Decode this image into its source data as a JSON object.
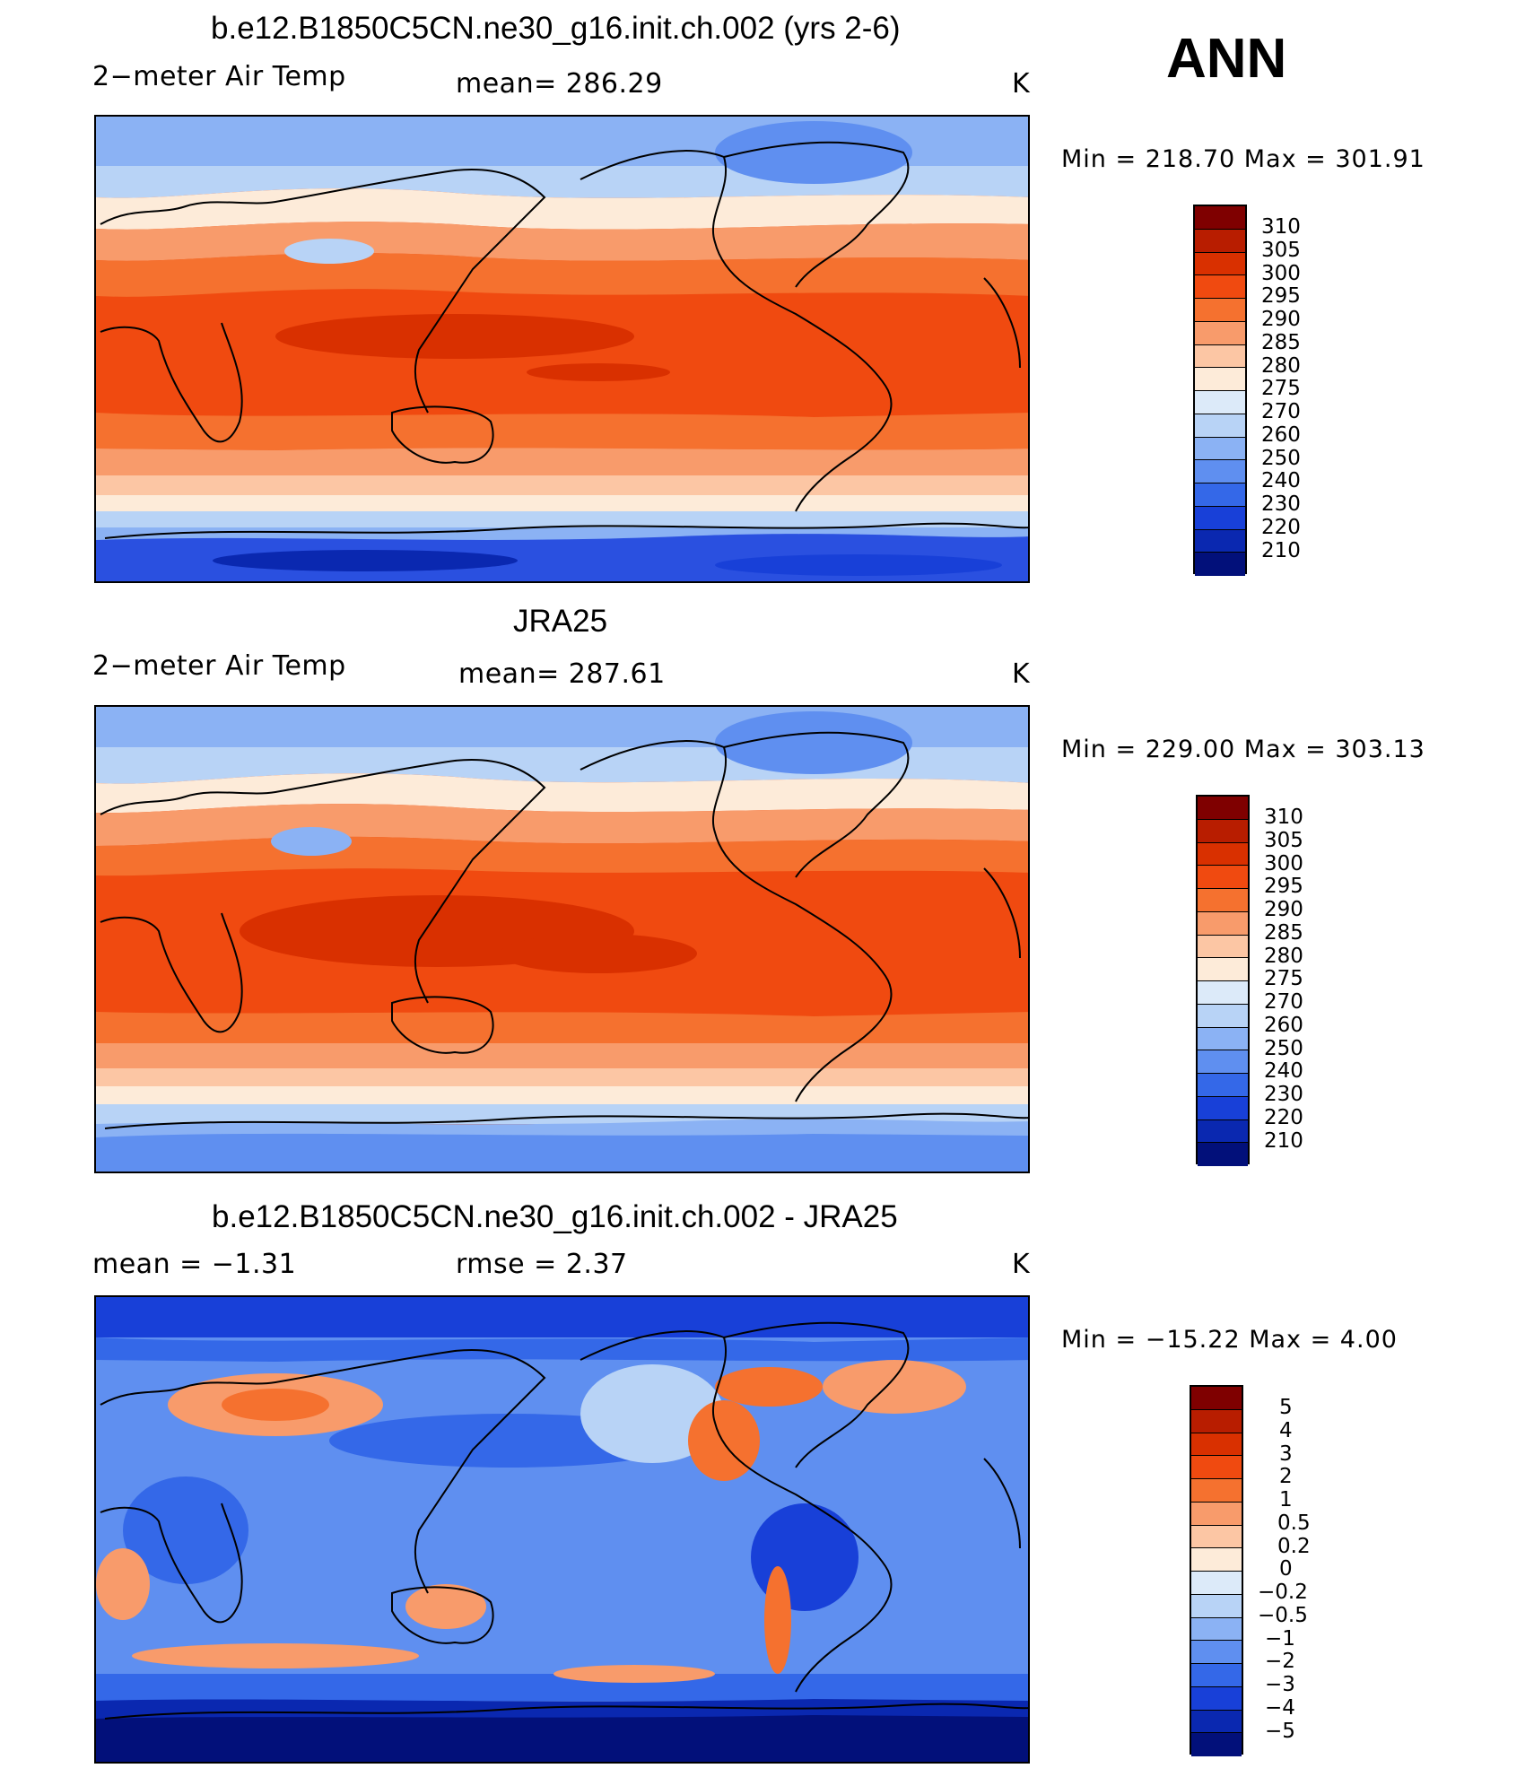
{
  "season": "ANN",
  "panels": [
    {
      "title": "b.e12.B1850C5CN.ne30_g16.init.ch.002 (yrs 2-6)",
      "left_label": "2−meter Air Temp",
      "center_label": "mean=  286.29",
      "units": "K",
      "minmax": "Min  =  218.70  Max  =  301.91",
      "colorbar_labels": [
        "310",
        "305",
        "300",
        "295",
        "290",
        "285",
        "280",
        "275",
        "270",
        "260",
        "250",
        "240",
        "230",
        "220",
        "210"
      ]
    },
    {
      "title": "JRA25",
      "left_label": "2−meter Air Temp",
      "center_label": "mean=  287.61",
      "units": "K",
      "minmax": "Min  =  229.00  Max  =  303.13",
      "colorbar_labels": [
        "310",
        "305",
        "300",
        "295",
        "290",
        "285",
        "280",
        "275",
        "270",
        "260",
        "250",
        "240",
        "230",
        "220",
        "210"
      ]
    },
    {
      "title": "b.e12.B1850C5CN.ne30_g16.init.ch.002 - JRA25",
      "left_label": "mean  =    −1.31",
      "center_label": "rmse  =     2.37",
      "units": "K",
      "minmax": "Min  =  −15.22  Max  =     4.00",
      "colorbar_labels": [
        "5",
        "4",
        "3",
        "2",
        "1",
        "0.5",
        "0.2",
        "0",
        "−0.2",
        "−0.5",
        "−1",
        "−2",
        "−3",
        "−4",
        "−5"
      ]
    }
  ],
  "colorbar_colors": [
    "#7f0000",
    "#b81d00",
    "#d93000",
    "#f04a10",
    "#f5712f",
    "#f89b6b",
    "#fcc6a4",
    "#fdebd9",
    "#dceaf9",
    "#b8d3f6",
    "#8bb2f4",
    "#5f8ff0",
    "#3468e8",
    "#1840d8",
    "#0a28b0",
    "#02107a"
  ],
  "map_colors": {
    "polar_deep": "#0a28b0",
    "polar": "#2a50e0",
    "cold": "#5f8ff0",
    "cool": "#8bb2f4",
    "chilly": "#b8d3f6",
    "neutral": "#fdebd9",
    "mild": "#fcc6a4",
    "warm": "#f89b6b",
    "hot": "#f5712f",
    "hotter": "#f04a10",
    "hottest": "#d93000"
  }
}
